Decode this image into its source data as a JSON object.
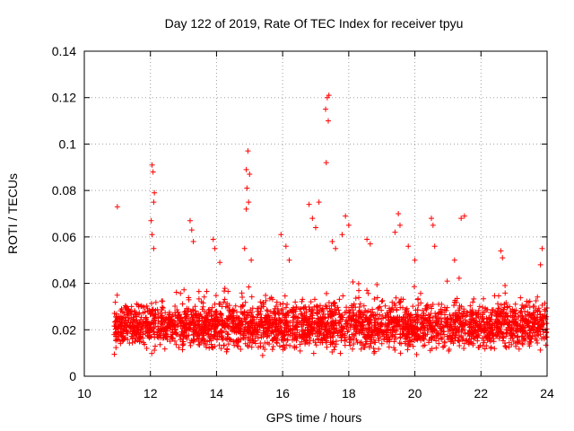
{
  "colors": {
    "marker": "#ff0000",
    "grid": "#a0a0a0",
    "axis": "#000000",
    "background": "#ffffff"
  },
  "chart_data": {
    "type": "scatter",
    "title": "Day 122 of 2019, Rate Of TEC Index for receiver tpyu",
    "xlabel": "GPS time / hours",
    "ylabel": "ROTI / TECUs",
    "xlim": [
      10,
      24
    ],
    "ylim": [
      0,
      0.14
    ],
    "xticks": [
      10,
      12,
      14,
      16,
      18,
      20,
      22,
      24
    ],
    "xtick_labels": [
      "10",
      "12",
      "14",
      "16",
      "18",
      "20",
      "22",
      "24"
    ],
    "yticks": [
      0,
      0.02,
      0.04,
      0.06,
      0.08,
      0.1,
      0.12,
      0.14
    ],
    "ytick_labels": [
      "0",
      "0.02",
      "0.04",
      "0.06",
      "0.08",
      "0.1",
      "0.12",
      "0.14"
    ],
    "grid": true,
    "marker": "+",
    "series": [
      {
        "name": "ROTI",
        "baseline_band": {
          "x_range": [
            10.9,
            24.0
          ],
          "typical_y_range": [
            0.008,
            0.035
          ],
          "approx_point_count": 3000
        },
        "notable_points": [
          {
            "x": 11.0,
            "y": 0.073
          },
          {
            "x": 12.05,
            "y": 0.091
          },
          {
            "x": 12.08,
            "y": 0.088
          },
          {
            "x": 12.12,
            "y": 0.079
          },
          {
            "x": 12.1,
            "y": 0.075
          },
          {
            "x": 12.02,
            "y": 0.067
          },
          {
            "x": 12.05,
            "y": 0.061
          },
          {
            "x": 12.1,
            "y": 0.055
          },
          {
            "x": 13.2,
            "y": 0.067
          },
          {
            "x": 13.25,
            "y": 0.063
          },
          {
            "x": 13.3,
            "y": 0.058
          },
          {
            "x": 13.9,
            "y": 0.059
          },
          {
            "x": 13.95,
            "y": 0.055
          },
          {
            "x": 14.1,
            "y": 0.049
          },
          {
            "x": 14.95,
            "y": 0.097
          },
          {
            "x": 14.9,
            "y": 0.089
          },
          {
            "x": 15.0,
            "y": 0.087
          },
          {
            "x": 14.92,
            "y": 0.081
          },
          {
            "x": 14.97,
            "y": 0.075
          },
          {
            "x": 14.9,
            "y": 0.072
          },
          {
            "x": 14.85,
            "y": 0.055
          },
          {
            "x": 15.05,
            "y": 0.05
          },
          {
            "x": 15.95,
            "y": 0.061
          },
          {
            "x": 16.1,
            "y": 0.056
          },
          {
            "x": 16.2,
            "y": 0.05
          },
          {
            "x": 16.8,
            "y": 0.074
          },
          {
            "x": 16.9,
            "y": 0.068
          },
          {
            "x": 17.0,
            "y": 0.064
          },
          {
            "x": 17.1,
            "y": 0.075
          },
          {
            "x": 17.3,
            "y": 0.115
          },
          {
            "x": 17.35,
            "y": 0.12
          },
          {
            "x": 17.4,
            "y": 0.121
          },
          {
            "x": 17.38,
            "y": 0.11
          },
          {
            "x": 17.32,
            "y": 0.092
          },
          {
            "x": 17.5,
            "y": 0.058
          },
          {
            "x": 17.6,
            "y": 0.055
          },
          {
            "x": 17.9,
            "y": 0.069
          },
          {
            "x": 18.0,
            "y": 0.065
          },
          {
            "x": 17.8,
            "y": 0.061
          },
          {
            "x": 18.55,
            "y": 0.059
          },
          {
            "x": 18.65,
            "y": 0.057
          },
          {
            "x": 19.5,
            "y": 0.07
          },
          {
            "x": 19.55,
            "y": 0.065
          },
          {
            "x": 19.4,
            "y": 0.062
          },
          {
            "x": 19.8,
            "y": 0.056
          },
          {
            "x": 20.0,
            "y": 0.05
          },
          {
            "x": 20.5,
            "y": 0.068
          },
          {
            "x": 20.55,
            "y": 0.065
          },
          {
            "x": 20.6,
            "y": 0.056
          },
          {
            "x": 21.4,
            "y": 0.068
          },
          {
            "x": 21.5,
            "y": 0.069
          },
          {
            "x": 21.2,
            "y": 0.05
          },
          {
            "x": 22.6,
            "y": 0.054
          },
          {
            "x": 22.65,
            "y": 0.051
          },
          {
            "x": 23.85,
            "y": 0.055
          },
          {
            "x": 23.8,
            "y": 0.048
          }
        ]
      }
    ]
  }
}
